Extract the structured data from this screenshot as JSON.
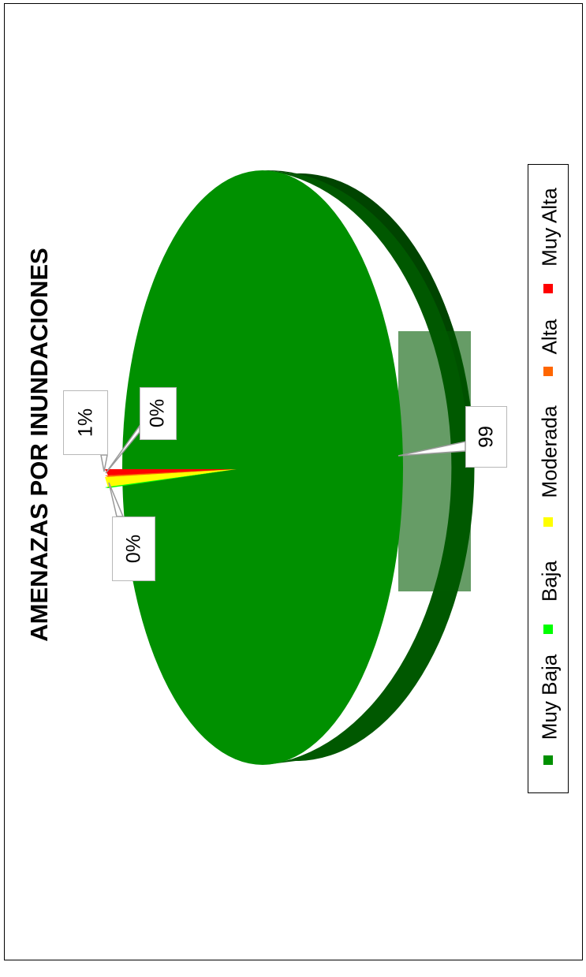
{
  "chart_data": {
    "type": "pie",
    "title": "AMENAZAS POR INUNDACIONES",
    "categories": [
      "Muy Baja",
      "Baja",
      "Moderada",
      "Alta",
      "Muy Alta"
    ],
    "values": [
      99,
      0,
      0,
      0,
      1
    ],
    "data_labels": [
      "99",
      "",
      "0%",
      "0%",
      "1%"
    ],
    "legend_placement": "right",
    "colors": {
      "Muy Baja": "#009000",
      "Baja": "#00ff00",
      "Moderada": "#ffff00",
      "Alta": "#ff6600",
      "Muy Alta": "#ff0000",
      "side_dark": "#004400"
    }
  }
}
